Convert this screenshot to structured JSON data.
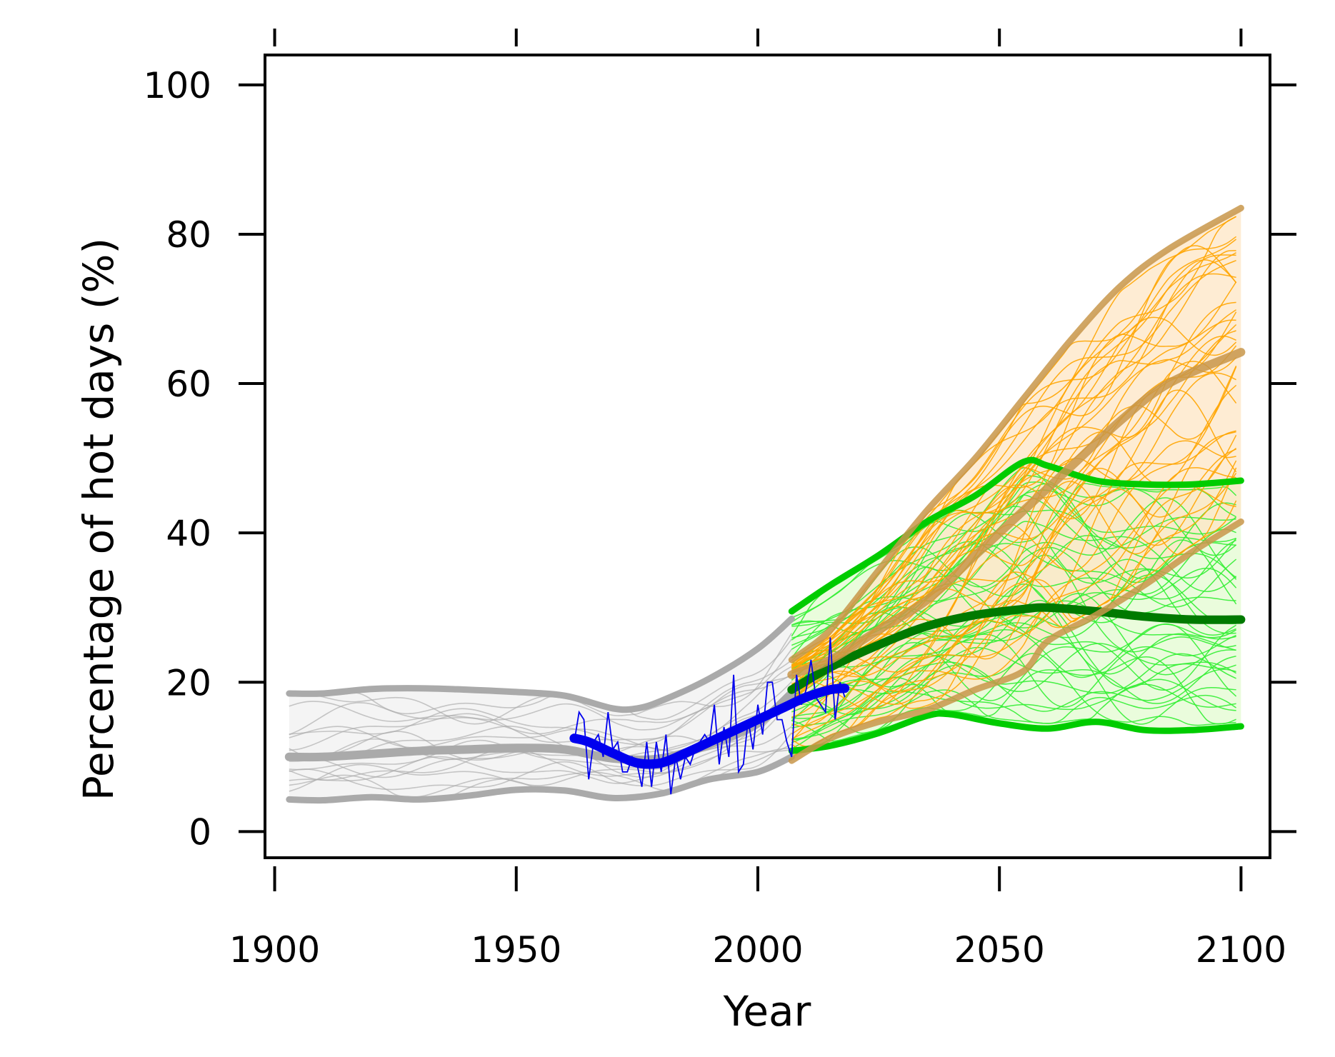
{
  "chart_data": {
    "type": "line",
    "title": "",
    "xlabel": "Year",
    "ylabel": "Percentage of hot days (%)",
    "xlim": [
      1898,
      2106
    ],
    "ylim": [
      -3.5,
      104
    ],
    "xticks": [
      1900,
      1950,
      2000,
      2050,
      2100
    ],
    "yticks": [
      0,
      20,
      40,
      60,
      80,
      100
    ],
    "grid": false,
    "legend": "none",
    "colors": {
      "historical": "#aaaaaa",
      "historical_band": "#f4f4f4",
      "observed": "#0000ee",
      "high_emissions": "#c8964a",
      "high_emissions_band": "#fde5c4",
      "high_emissions_members": "#ffa500",
      "low_emissions": "#00cc00",
      "low_emissions_median": "#007a00",
      "low_emissions_band": "#e8fcd8",
      "low_emissions_members": "#33ee33"
    },
    "series": [
      {
        "role": "historical-upper",
        "x": [
          1903,
          1910,
          1920,
          1930,
          1940,
          1950,
          1960,
          1970,
          1975,
          1980,
          1990,
          2000,
          2007
        ],
        "y": [
          18.5,
          18.5,
          19.1,
          19.2,
          19,
          18.7,
          18.2,
          16.5,
          16.5,
          17.5,
          20.5,
          24.5,
          28.5
        ]
      },
      {
        "role": "historical-median",
        "x": [
          1903,
          1910,
          1920,
          1930,
          1940,
          1950,
          1960,
          1970,
          1980,
          1990,
          2000,
          2007
        ],
        "y": [
          10,
          10,
          10.4,
          10.8,
          11,
          11.2,
          11,
          9.8,
          9.8,
          11.7,
          14.5,
          18.5
        ]
      },
      {
        "role": "historical-lower",
        "x": [
          1903,
          1910,
          1920,
          1930,
          1940,
          1950,
          1960,
          1970,
          1980,
          1990,
          2000,
          2007
        ],
        "y": [
          4.3,
          4.2,
          4.6,
          4.3,
          4.8,
          5.6,
          5.5,
          4.5,
          5.1,
          7,
          8,
          10
        ]
      },
      {
        "role": "high-emissions-upper",
        "x": [
          2007,
          2015,
          2025,
          2035,
          2045,
          2055,
          2065,
          2075,
          2085,
          2100
        ],
        "y": [
          23,
          27,
          35,
          43,
          50,
          58,
          66,
          73,
          78,
          83.5
        ]
      },
      {
        "role": "high-emissions-median",
        "x": [
          2007,
          2015,
          2025,
          2035,
          2045,
          2055,
          2065,
          2075,
          2085,
          2100
        ],
        "y": [
          21,
          23,
          27,
          31,
          37,
          43,
          49,
          55,
          60,
          64.2
        ]
      },
      {
        "role": "high-emissions-lower",
        "x": [
          2007,
          2015,
          2025,
          2035,
          2045,
          2055,
          2060,
          2070,
          2080,
          2090,
          2100
        ],
        "y": [
          9.5,
          12.5,
          14.7,
          16.3,
          19,
          21.5,
          25.5,
          29,
          33,
          37.5,
          41.5
        ]
      },
      {
        "role": "low-emissions-upper",
        "x": [
          2007,
          2015,
          2025,
          2035,
          2045,
          2055,
          2060,
          2070,
          2080,
          2090,
          2100
        ],
        "y": [
          29.5,
          33,
          37,
          41.5,
          45,
          49.5,
          49,
          47,
          46.5,
          46.5,
          47
        ]
      },
      {
        "role": "low-emissions-median",
        "x": [
          2007,
          2015,
          2025,
          2035,
          2045,
          2055,
          2060,
          2070,
          2080,
          2090,
          2100
        ],
        "y": [
          19,
          22,
          25,
          27.5,
          29,
          29.8,
          30,
          29.5,
          28.8,
          28.4,
          28.4
        ]
      },
      {
        "role": "low-emissions-lower",
        "x": [
          2007,
          2015,
          2025,
          2035,
          2040,
          2050,
          2060,
          2070,
          2080,
          2090,
          2100
        ],
        "y": [
          10.8,
          11.5,
          13.2,
          15.5,
          15.7,
          14.5,
          13.8,
          14.7,
          13.6,
          13.6,
          14.1
        ]
      },
      {
        "role": "observed-trend",
        "x": [
          1962,
          1965,
          1970,
          1975,
          1980,
          1985,
          1990,
          1995,
          2000,
          2005,
          2010,
          2015,
          2018
        ],
        "y": [
          12.5,
          12,
          10.5,
          9.2,
          9.2,
          10.5,
          12,
          13.5,
          15,
          16.5,
          18,
          19,
          19.2
        ]
      },
      {
        "role": "observed-annual",
        "x": [
          1962,
          1963,
          1964,
          1965,
          1966,
          1967,
          1968,
          1969,
          1970,
          1971,
          1972,
          1973,
          1974,
          1975,
          1976,
          1977,
          1978,
          1979,
          1980,
          1981,
          1982,
          1983,
          1984,
          1985,
          1986,
          1987,
          1988,
          1989,
          1990,
          1991,
          1992,
          1993,
          1994,
          1995,
          1996,
          1997,
          1998,
          1999,
          2000,
          2001,
          2002,
          2003,
          2004,
          2005,
          2006,
          2007,
          2008,
          2009,
          2010,
          2011,
          2012,
          2013,
          2014,
          2015,
          2016,
          2017,
          2018
        ],
        "y": [
          12,
          16,
          15,
          7,
          12,
          13,
          10,
          16,
          11,
          12,
          8,
          8,
          10,
          9,
          6,
          12,
          6,
          12,
          8,
          13,
          5,
          10,
          7,
          10,
          9,
          11,
          12,
          13,
          12,
          17,
          9,
          14,
          10,
          21,
          8,
          9,
          15,
          11,
          17,
          13,
          20,
          20,
          15,
          15,
          12,
          10,
          21,
          17,
          19,
          23,
          18,
          17,
          16,
          26,
          15,
          20,
          18
        ]
      }
    ],
    "ensembles": {
      "historical": {
        "x_range": [
          1903,
          2007
        ],
        "members": 18
      },
      "high_emissions": {
        "x_range": [
          2007,
          2100
        ],
        "members": 40
      },
      "low_emissions": {
        "x_range": [
          2007,
          2100
        ],
        "members": 40
      }
    }
  }
}
